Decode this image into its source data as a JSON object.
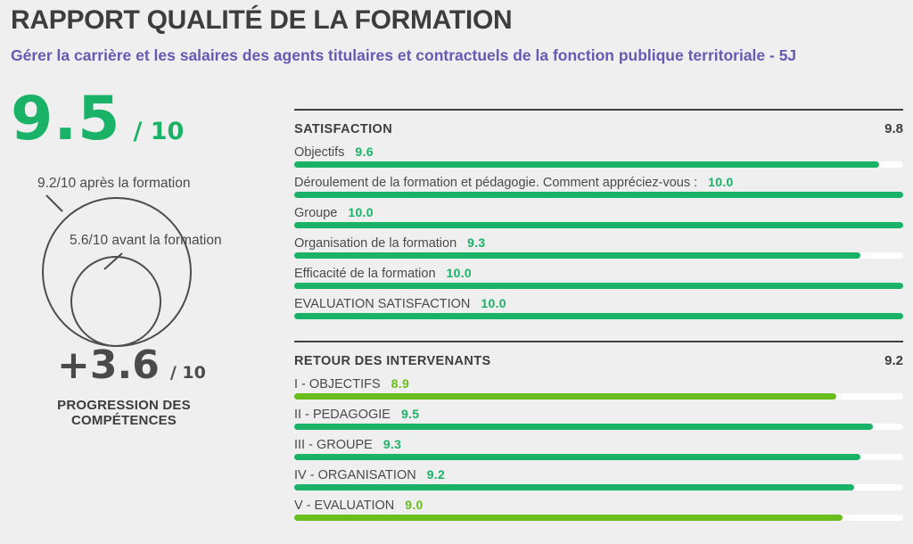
{
  "header": {
    "title": "RAPPORT QUALITÉ DE LA FORMATION",
    "subtitle": "Gérer la carrière et les salaires des agents titulaires et contractuels de la fonction publique territoriale - 5J"
  },
  "summary": {
    "main_score": "9.5",
    "main_score_suffix": "/ 10",
    "after_label": "9.2/10 après la formation",
    "before_label": "5.6/10 avant la formation",
    "progression_value": "+3.6",
    "progression_suffix": "/ 10",
    "progression_label": "PROGRESSION DES COMPÉTENCES"
  },
  "colors": {
    "emerald": "#1ab266",
    "apple": "#69be1e",
    "purple": "#6759b4",
    "dark_text": "#3d3d3d",
    "label_text": "#4a4a4a",
    "track": "#ffffff",
    "background": "#efefef",
    "circle_stroke": "#4d4d4d"
  },
  "chart_data": [
    {
      "type": "bar",
      "title": "SATISFACTION",
      "overall": 9.8,
      "max": 10,
      "items": [
        {
          "label": "Objectifs",
          "value": 9.6,
          "color": "emerald"
        },
        {
          "label": "Déroulement de la formation et pédagogie. Comment appréciez-vous :",
          "value": 10.0,
          "color": "emerald"
        },
        {
          "label": "Groupe",
          "value": 10.0,
          "color": "emerald"
        },
        {
          "label": "Organisation de la formation",
          "value": 9.3,
          "color": "emerald"
        },
        {
          "label": "Efficacité de la formation",
          "value": 10.0,
          "color": "emerald"
        },
        {
          "label": "EVALUATION SATISFACTION",
          "value": 10.0,
          "color": "emerald"
        }
      ]
    },
    {
      "type": "bar",
      "title": "RETOUR DES INTERVENANTS",
      "overall": 9.2,
      "max": 10,
      "items": [
        {
          "label": "I - OBJECTIFS",
          "value": 8.9,
          "color": "apple"
        },
        {
          "label": "II - PEDAGOGIE",
          "value": 9.5,
          "color": "emerald"
        },
        {
          "label": "III - GROUPE",
          "value": 9.3,
          "color": "emerald"
        },
        {
          "label": "IV - ORGANISATION",
          "value": 9.2,
          "color": "emerald"
        },
        {
          "label": "V - EVALUATION",
          "value": 9.0,
          "color": "apple"
        }
      ]
    }
  ]
}
